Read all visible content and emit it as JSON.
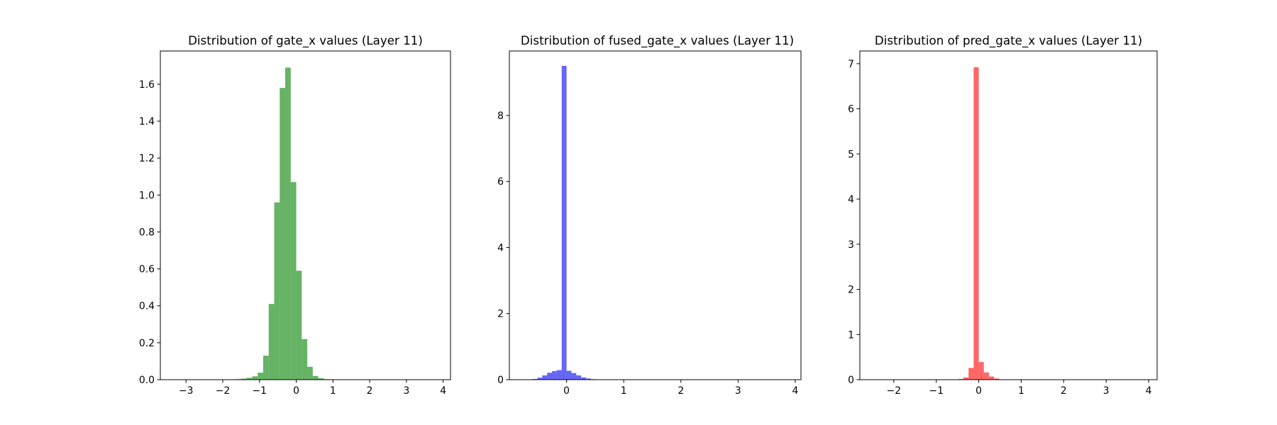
{
  "chart_data": [
    {
      "type": "bar",
      "title": "Distribution of gate_x values (Layer 11)",
      "xlabel": "",
      "ylabel": "",
      "color": "#008000",
      "opacity": 0.6,
      "xlim": [
        -3.7,
        4.2
      ],
      "ylim": [
        0,
        1.78
      ],
      "xticks": [
        -3,
        -2,
        -1,
        0,
        1,
        2,
        3,
        4
      ],
      "yticks": [
        0.0,
        0.2,
        0.4,
        0.6,
        0.8,
        1.0,
        1.2,
        1.4,
        1.6
      ],
      "ytick_labels": [
        "0.0",
        "0.2",
        "0.4",
        "0.6",
        "0.8",
        "1.0",
        "1.2",
        "1.4",
        "1.6"
      ],
      "bin_width": 0.15,
      "bins_start": [
        -1.65,
        -1.5,
        -1.35,
        -1.2,
        -1.05,
        -0.9,
        -0.75,
        -0.6,
        -0.45,
        -0.3,
        -0.15,
        0.0,
        0.15,
        0.3,
        0.45,
        0.6,
        0.75
      ],
      "values": [
        0.003,
        0.006,
        0.01,
        0.018,
        0.038,
        0.13,
        0.41,
        0.96,
        1.58,
        1.69,
        1.07,
        0.59,
        0.22,
        0.07,
        0.02,
        0.008,
        0.003
      ]
    },
    {
      "type": "bar",
      "title": "Distribution of fused_gate_x values (Layer 11)",
      "xlabel": "",
      "ylabel": "",
      "color": "#0000ee",
      "opacity": 0.6,
      "xlim": [
        -1.0,
        4.1
      ],
      "ylim": [
        0,
        9.95
      ],
      "xticks": [
        0,
        1,
        2,
        3,
        4
      ],
      "yticks": [
        0,
        2,
        4,
        6,
        8
      ],
      "ytick_labels": [
        "0",
        "2",
        "4",
        "6",
        "8"
      ],
      "bin_width": 0.085,
      "bins_start": [
        -0.68,
        -0.595,
        -0.51,
        -0.425,
        -0.34,
        -0.255,
        -0.17,
        -0.085,
        0.0,
        0.085,
        0.17,
        0.255,
        0.34,
        0.425,
        0.51,
        0.595,
        0.68
      ],
      "values": [
        0.005,
        0.02,
        0.06,
        0.13,
        0.21,
        0.26,
        0.29,
        9.5,
        0.27,
        0.2,
        0.13,
        0.07,
        0.035,
        0.015,
        0.007,
        0.003,
        0.001
      ]
    },
    {
      "type": "bar",
      "title": "Distribution of pred_gate_x values (Layer 11)",
      "xlabel": "",
      "ylabel": "",
      "color": "#ff0000",
      "opacity": 0.6,
      "xlim": [
        -2.8,
        4.2
      ],
      "ylim": [
        0,
        7.28
      ],
      "xticks": [
        -2,
        -1,
        0,
        1,
        2,
        3,
        4
      ],
      "yticks": [
        0,
        1,
        2,
        3,
        4,
        5,
        6,
        7
      ],
      "ytick_labels": [
        "0",
        "1",
        "2",
        "3",
        "4",
        "5",
        "6",
        "7"
      ],
      "bin_width": 0.12,
      "bins_start": [
        -0.6,
        -0.48,
        -0.36,
        -0.24,
        -0.12,
        0.0,
        0.12,
        0.24,
        0.36,
        0.48,
        0.6
      ],
      "values": [
        0.005,
        0.015,
        0.05,
        0.26,
        6.92,
        0.39,
        0.16,
        0.07,
        0.025,
        0.008,
        0.003
      ]
    }
  ]
}
